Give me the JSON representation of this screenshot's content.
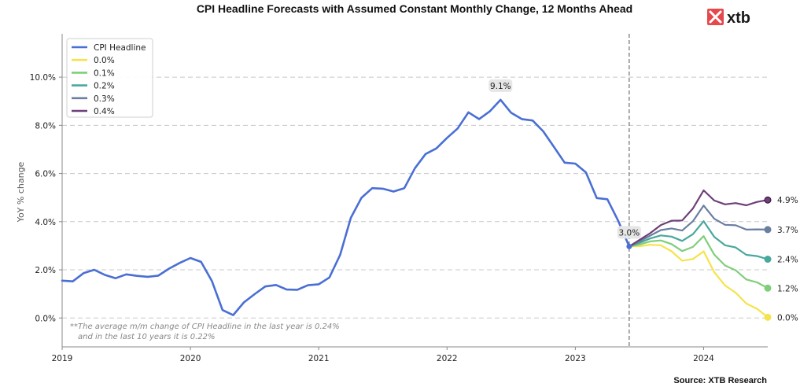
{
  "chart_data": {
    "type": "line",
    "title": "CPI Headline Forecasts with Assumed Constant Monthly Change, 12 Months Ahead",
    "ylabel": "YoY % change",
    "xlabel": "",
    "xlim": [
      2019,
      2024.5
    ],
    "ylim": [
      -1.2,
      11.8
    ],
    "y_ticks": [
      0,
      2,
      4,
      6,
      8,
      10
    ],
    "y_tick_labels": [
      "0.0%",
      "2.0%",
      "4.0%",
      "6.0%",
      "8.0%",
      "10.0%"
    ],
    "x_ticks": [
      2019,
      2020,
      2021,
      2022,
      2023,
      2024
    ],
    "x_tick_labels": [
      "2019",
      "2020",
      "2021",
      "2022",
      "2023",
      "2024"
    ],
    "grid": "horizontal dashed",
    "legend_position": "top-left",
    "forecast_start": 2023.42,
    "series": [
      {
        "name": "CPI Headline",
        "color": "#4a6fd4",
        "x": [
          2019.0,
          2019.083,
          2019.167,
          2019.25,
          2019.333,
          2019.417,
          2019.5,
          2019.583,
          2019.667,
          2019.75,
          2019.833,
          2019.917,
          2020.0,
          2020.083,
          2020.167,
          2020.25,
          2020.333,
          2020.417,
          2020.5,
          2020.583,
          2020.667,
          2020.75,
          2020.833,
          2020.917,
          2021.0,
          2021.083,
          2021.167,
          2021.25,
          2021.333,
          2021.417,
          2021.5,
          2021.583,
          2021.667,
          2021.75,
          2021.833,
          2021.917,
          2022.0,
          2022.083,
          2022.167,
          2022.25,
          2022.333,
          2022.417,
          2022.5,
          2022.583,
          2022.667,
          2022.75,
          2022.833,
          2022.917,
          2023.0,
          2023.083,
          2023.167,
          2023.25,
          2023.333,
          2023.42
        ],
        "values": [
          1.55,
          1.52,
          1.86,
          2.0,
          1.79,
          1.65,
          1.81,
          1.75,
          1.71,
          1.76,
          2.05,
          2.29,
          2.49,
          2.33,
          1.54,
          0.33,
          0.12,
          0.65,
          0.99,
          1.31,
          1.37,
          1.18,
          1.17,
          1.36,
          1.4,
          1.68,
          2.62,
          4.16,
          4.99,
          5.39,
          5.37,
          5.25,
          5.39,
          6.22,
          6.81,
          7.04,
          7.48,
          7.87,
          8.54,
          8.26,
          8.58,
          9.06,
          8.52,
          8.26,
          8.2,
          7.75,
          7.11,
          6.45,
          6.41,
          6.04,
          4.98,
          4.93,
          4.05,
          2.97
        ]
      },
      {
        "name": "0.0%",
        "color": "#f5e34b",
        "x": [
          2023.42,
          2023.5,
          2023.583,
          2023.667,
          2023.75,
          2023.833,
          2023.917,
          2024.0,
          2024.083,
          2024.167,
          2024.25,
          2024.333,
          2024.417,
          2024.5
        ],
        "values": [
          2.97,
          2.98,
          3.04,
          3.02,
          2.77,
          2.38,
          2.45,
          2.77,
          1.9,
          1.35,
          1.05,
          0.6,
          0.38,
          0.03
        ]
      },
      {
        "name": "0.1%",
        "color": "#80ce7a",
        "x": [
          2023.42,
          2023.5,
          2023.583,
          2023.667,
          2023.75,
          2023.833,
          2023.917,
          2024.0,
          2024.083,
          2024.167,
          2024.25,
          2024.333,
          2024.417,
          2024.5
        ],
        "values": [
          2.97,
          3.05,
          3.18,
          3.22,
          3.07,
          2.78,
          2.95,
          3.4,
          2.63,
          2.18,
          1.98,
          1.6,
          1.48,
          1.24
        ]
      },
      {
        "name": "0.2%",
        "color": "#48a89c",
        "x": [
          2023.42,
          2023.5,
          2023.583,
          2023.667,
          2023.75,
          2023.833,
          2023.917,
          2024.0,
          2024.083,
          2024.167,
          2024.25,
          2024.333,
          2024.417,
          2024.5
        ],
        "values": [
          2.97,
          3.12,
          3.3,
          3.43,
          3.38,
          3.2,
          3.48,
          4.02,
          3.37,
          3.02,
          2.93,
          2.62,
          2.57,
          2.44
        ]
      },
      {
        "name": "0.3%",
        "color": "#6a7fa0",
        "x": [
          2023.42,
          2023.5,
          2023.583,
          2023.667,
          2023.75,
          2023.833,
          2023.917,
          2024.0,
          2024.083,
          2024.167,
          2024.25,
          2024.333,
          2024.417,
          2024.5
        ],
        "values": [
          2.97,
          3.18,
          3.42,
          3.65,
          3.72,
          3.63,
          4.02,
          4.67,
          4.12,
          3.87,
          3.85,
          3.67,
          3.68,
          3.67
        ]
      },
      {
        "name": "0.4%",
        "color": "#6e3f78",
        "x": [
          2023.42,
          2023.5,
          2023.583,
          2023.667,
          2023.75,
          2023.833,
          2023.917,
          2024.0,
          2024.083,
          2024.167,
          2024.25,
          2024.333,
          2024.417,
          2024.5
        ],
        "values": [
          2.97,
          3.24,
          3.52,
          3.86,
          4.04,
          4.05,
          4.55,
          5.3,
          4.88,
          4.72,
          4.77,
          4.68,
          4.82,
          4.9
        ]
      }
    ],
    "end_labels": [
      "4.9%",
      "3.7%",
      "2.4%",
      "1.2%",
      "0.0%"
    ],
    "annotations": [
      {
        "text": "9.1%",
        "x": 2022.417,
        "y": 9.06
      },
      {
        "text": "3.0%",
        "x": 2023.42,
        "y": 2.97
      }
    ],
    "note_lines": [
      "**The average m/m change of CPI Headline in the last year is 0.24%",
      "and in the last 10 years it is 0.22%"
    ],
    "source": "Source: XTB Research"
  },
  "logo": {
    "text": "xtb",
    "color": "#e5484d"
  }
}
